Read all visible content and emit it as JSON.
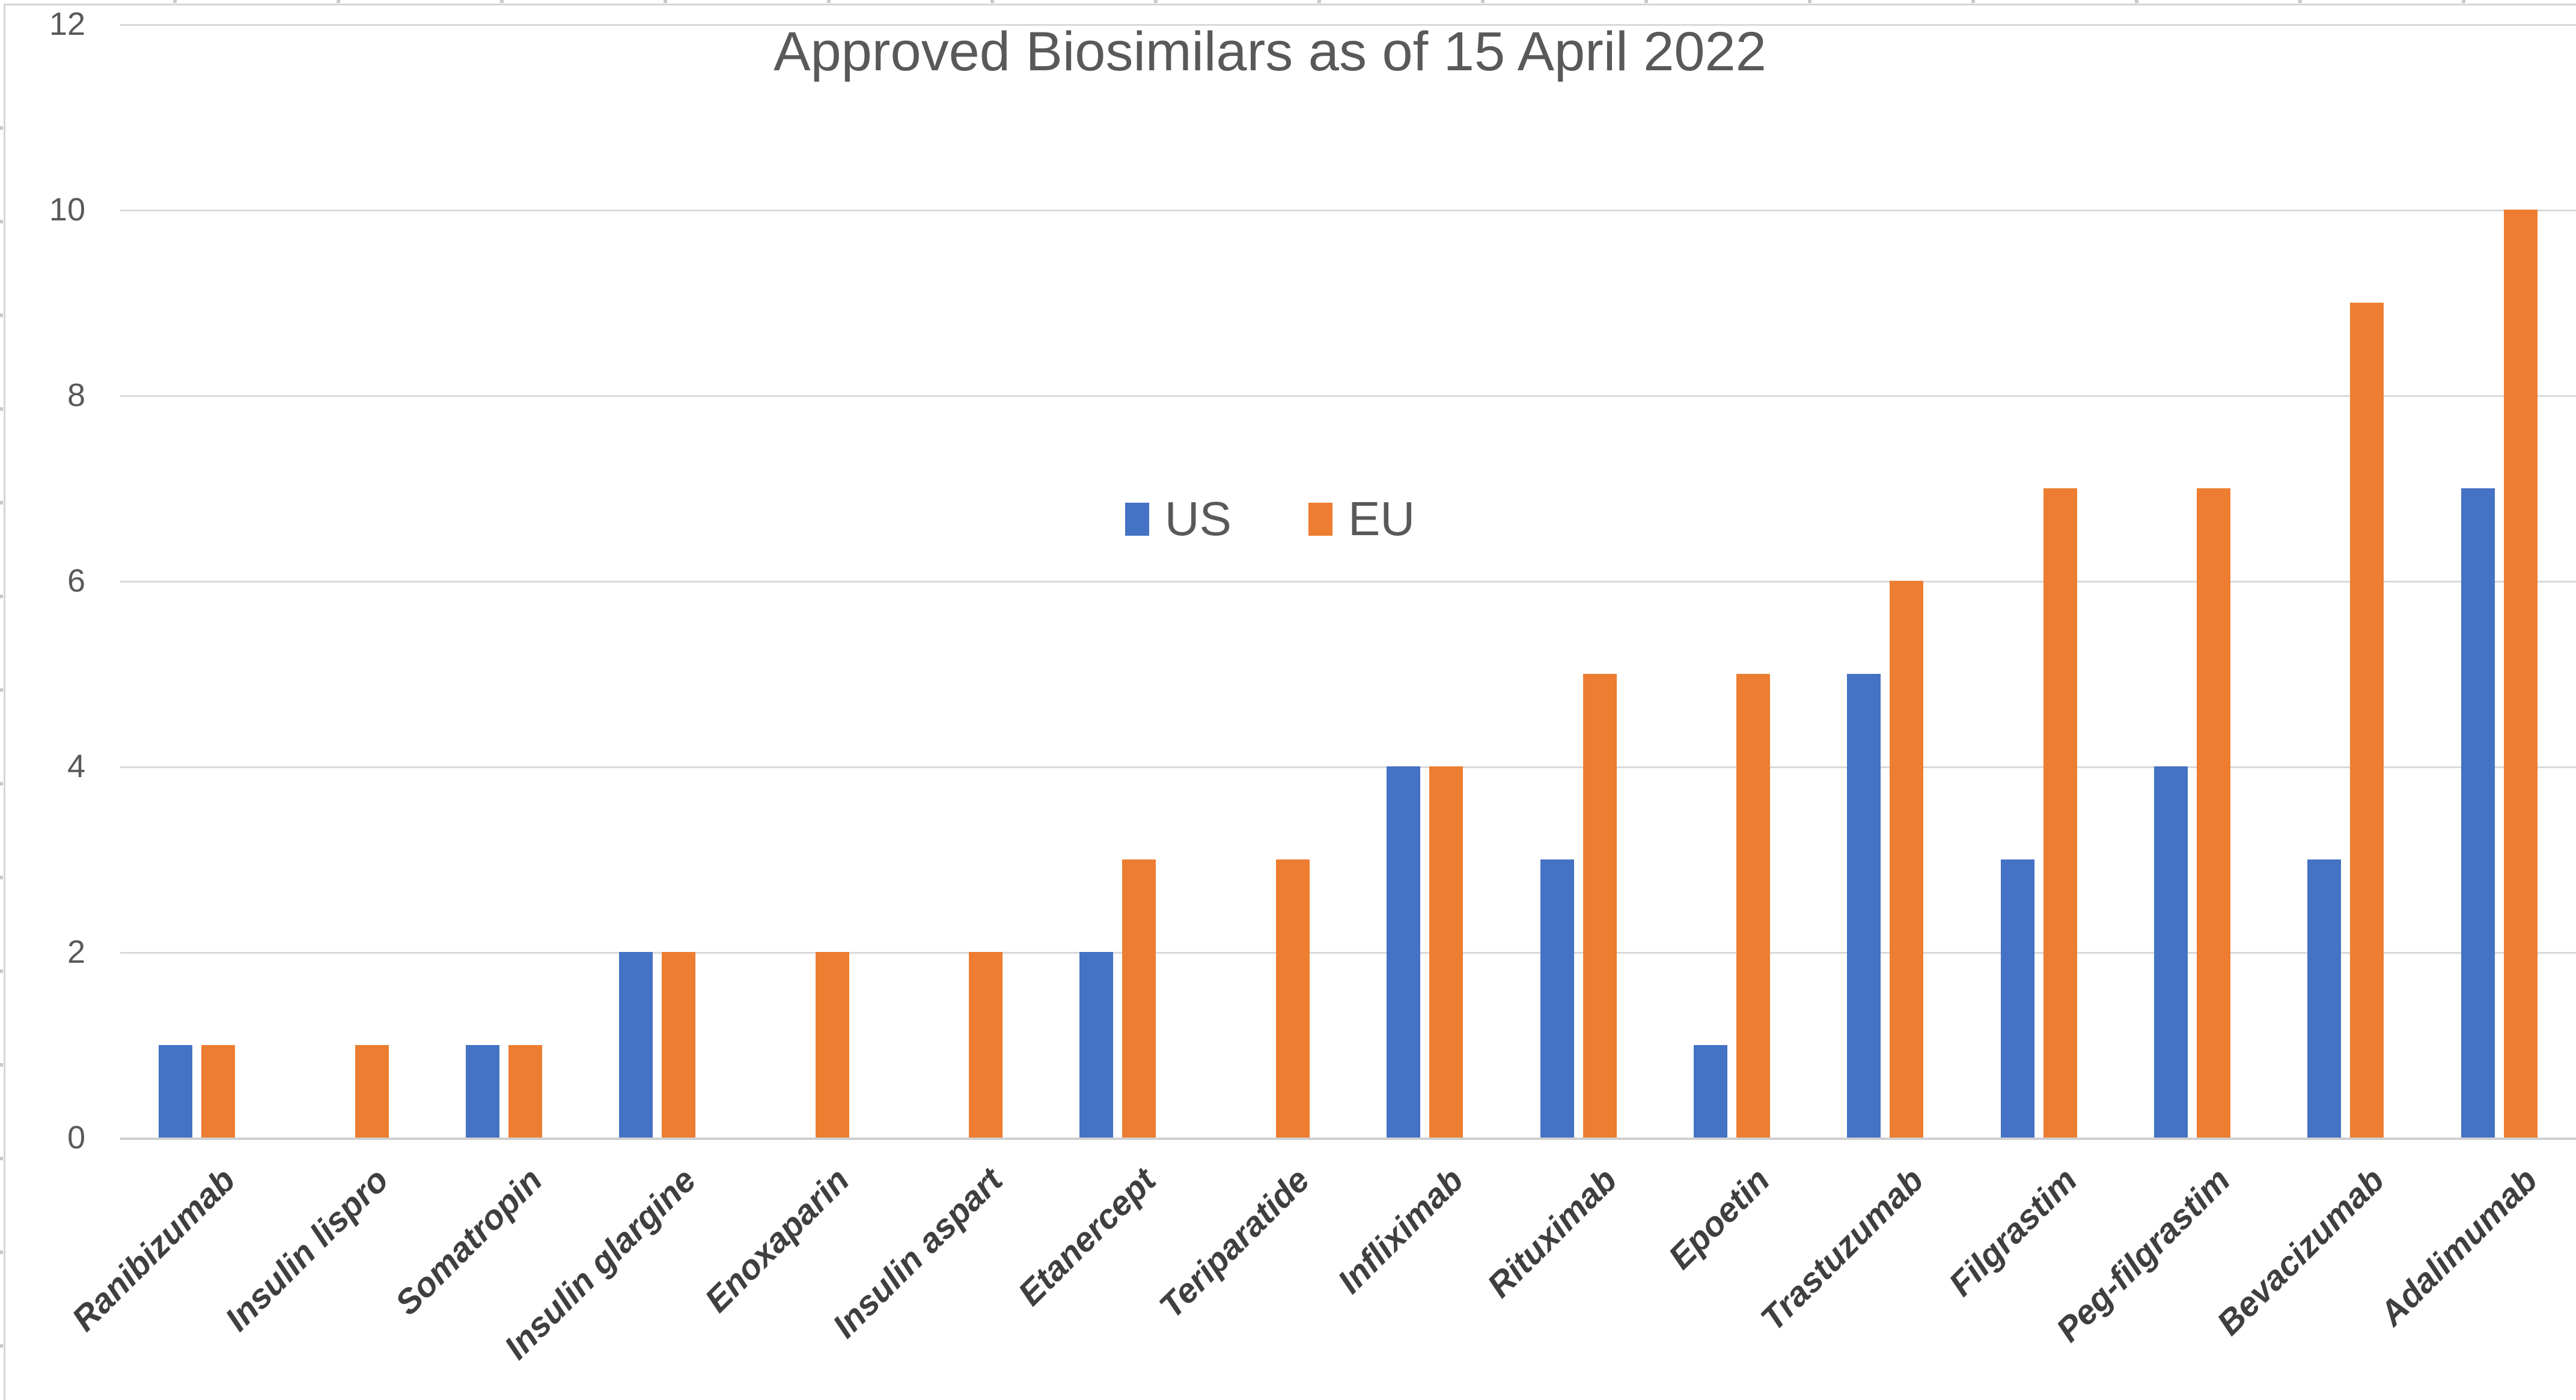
{
  "chart_data": {
    "type": "bar",
    "title": "Approved Biosimilars as of 15 April 2022",
    "categories": [
      "Ranibizumab",
      "Insulin lispro",
      "Somatropin",
      "Insulin glargine",
      "Enoxaparin",
      "Insulin aspart",
      "Etanercept",
      "Teriparatide",
      "Infliximab",
      "Rituximab",
      "Epoetin",
      "Trastuzumab",
      "Filgrastim",
      "Peg-filgrastim",
      "Bevacizumab",
      "Adalimumab"
    ],
    "series": [
      {
        "name": "US",
        "color": "#4472C4",
        "values": [
          1,
          0,
          1,
          2,
          0,
          0,
          2,
          0,
          4,
          3,
          1,
          5,
          3,
          4,
          3,
          7
        ]
      },
      {
        "name": "EU",
        "color": "#ED7D31",
        "values": [
          1,
          1,
          1,
          2,
          2,
          2,
          3,
          3,
          4,
          5,
          5,
          6,
          7,
          7,
          9,
          10
        ]
      }
    ],
    "xlabel": "",
    "ylabel": "",
    "ylim": [
      0,
      12
    ],
    "yticks": [
      0,
      2,
      4,
      6,
      8,
      10,
      12
    ],
    "grid": "horizontal gridlines on",
    "legend_position": "inside plot, upper center"
  },
  "colors": {
    "us_series": "#4472C4",
    "eu_series": "#ED7D31",
    "gridline": "#d9d9d9",
    "axis_baseline": "#cfcfcf",
    "title_text": "#595959",
    "tick_text": "#595959",
    "category_text": "#3f3f3f",
    "chart_border": "#d5d5d5"
  }
}
